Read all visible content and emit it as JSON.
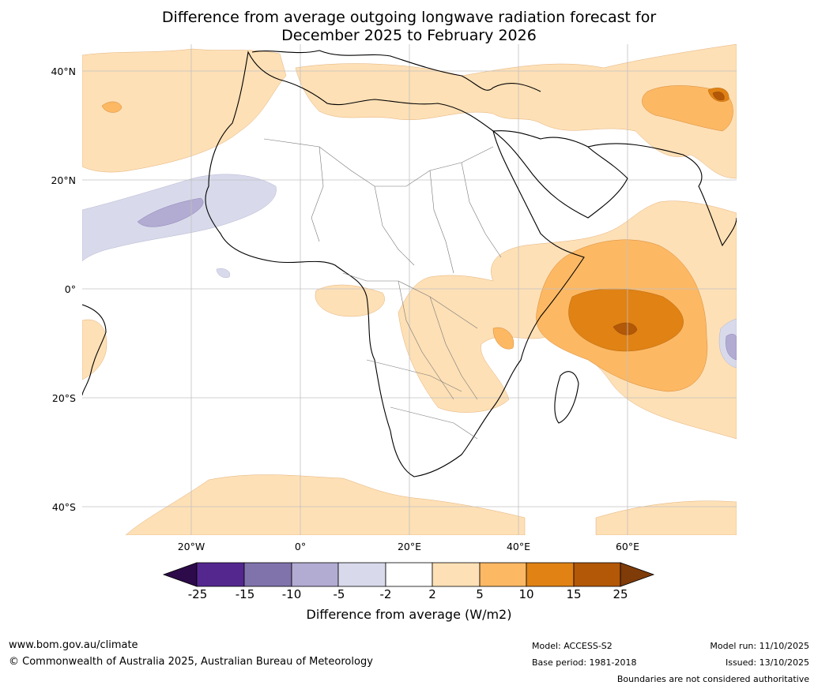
{
  "title": {
    "line1": "Difference from average outgoing longwave radiation forecast for",
    "line2": "December 2025 to February 2026"
  },
  "map": {
    "lat_labels": [
      "40°N",
      "20°N",
      "0°",
      "20°S",
      "40°S"
    ],
    "lon_labels": [
      "20°W",
      "0°",
      "20°E",
      "40°E",
      "60°E"
    ]
  },
  "legend": {
    "title": "Difference from average (W/m2)",
    "ticks": [
      "-25",
      "-15",
      "-10",
      "-5",
      "-2",
      "2",
      "5",
      "10",
      "15",
      "25"
    ],
    "colors": {
      "below_min": "#2d0a4a",
      "neg_25_15": "#54278f",
      "neg_15_10": "#8073ac",
      "neg_10_5": "#b2abd2",
      "neg_5_2": "#d8daeb",
      "neutral": "#ffffff",
      "pos_2_5": "#fee0b6",
      "pos_5_10": "#fdb863",
      "pos_10_15": "#e08214",
      "pos_15_25": "#b35806",
      "above_max": "#7f3b08"
    }
  },
  "footer": {
    "website": "www.bom.gov.au/climate",
    "copyright": "© Commonwealth of Australia 2025, Australian Bureau of Meteorology",
    "model": "Model: ACCESS-S2",
    "base_period": "Base period: 1981-2018",
    "model_run": "Model run: 11/10/2025",
    "issued": "Issued: 13/10/2025",
    "boundaries_note": "Boundaries are not considered authoritative"
  }
}
